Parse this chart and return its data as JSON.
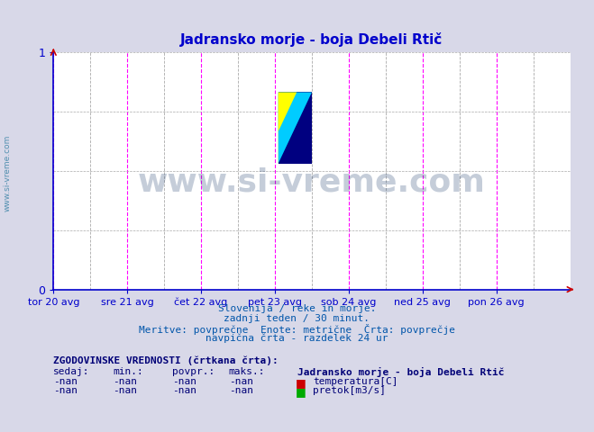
{
  "title": "Jadransko morje - boja Debeli Rtič",
  "title_color": "#0000cc",
  "bg_color": "#d8d8e8",
  "plot_bg_color": "#ffffff",
  "axis_color": "#0000cc",
  "grid_color_solid": "#ff00ff",
  "grid_color_dashed": "#aaaaaa",
  "xlim": [
    0,
    7
  ],
  "ylim": [
    0,
    1
  ],
  "yticks": [
    0,
    1
  ],
  "xtick_labels": [
    "tor 20 avg",
    "sre 21 avg",
    "čet 22 avg",
    "pet 23 avg",
    "sob 24 avg",
    "ned 25 avg",
    "pon 26 avg"
  ],
  "xtick_positions": [
    0,
    1,
    2,
    3,
    4,
    5,
    6
  ],
  "day_vline_positions": [
    0,
    1,
    2,
    3,
    4,
    5,
    6
  ],
  "half_vline_positions": [
    0.5,
    1.5,
    2.5,
    3.5,
    4.5,
    5.5,
    6.5
  ],
  "watermark_text": "www.si-vreme.com",
  "watermark_color": "#1a3a6b",
  "watermark_alpha": 0.25,
  "sub_text1": "Slovenija / reke in morje.",
  "sub_text2": "zadnji teden / 30 minut.",
  "sub_text3": "Meritve: povprečne  Enote: metrične  Črta: povprečje",
  "sub_text4": "navpična črta - razdelek 24 ur",
  "sub_text_color": "#0055aa",
  "legend_title": "ZGODOVINSKE VREDNOSTI (črtkana črta):",
  "legend_header": [
    "sedaj:",
    "min.:",
    "povpr.:",
    "maks.:"
  ],
  "legend_row1": [
    "-nan",
    "-nan",
    "-nan",
    "-nan"
  ],
  "legend_row2": [
    "-nan",
    "-nan",
    "-nan",
    "-nan"
  ],
  "legend_series1_label": "temperatura[C]",
  "legend_series2_label": "pretok[m3/s]",
  "legend_series1_color": "#cc0000",
  "legend_series2_color": "#00aa00",
  "legend_station": "Jadransko morje - boja Debeli Rtič",
  "logo_yellow": "#ffff00",
  "logo_cyan": "#00ccff",
  "logo_darkblue": "#000080",
  "sidebar_text": "www.si-vreme.com",
  "sidebar_color": "#4488aa",
  "arrow_color": "#cc0000"
}
